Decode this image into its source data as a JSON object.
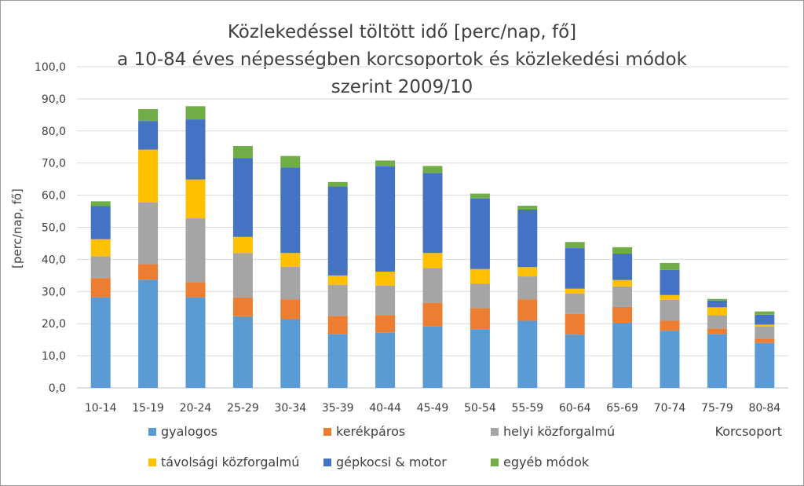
{
  "chart_data": {
    "type": "bar",
    "stacked": true,
    "title_lines": [
      "Közlekedéssel  töltött idő [perc/nap, fő]",
      "a 10-84 éves népességben  korcsoportok  és közlekedési  módok",
      "szerint  2009/10"
    ],
    "xlabel": "Korcsoport",
    "ylabel": "[perc/nap, fő]",
    "ylim": [
      0,
      100
    ],
    "ytick_step": 10,
    "ytick_labels": [
      "0,0",
      "10,0",
      "20,0",
      "30,0",
      "40,0",
      "50,0",
      "60,0",
      "70,0",
      "80,0",
      "90,0",
      "100,0"
    ],
    "grid": true,
    "legend_position": "bottom",
    "categories": [
      "10-14",
      "15-19",
      "20-24",
      "25-29",
      "30-34",
      "35-39",
      "40-44",
      "45-49",
      "50-54",
      "55-59",
      "60-64",
      "65-69",
      "70-74",
      "75-79",
      "80-84"
    ],
    "series": [
      {
        "name": "gyalogos",
        "color": "#5b9bd5",
        "values": [
          28.2,
          33.7,
          28.2,
          22.3,
          21.4,
          16.8,
          17.3,
          19.1,
          18.3,
          20.9,
          16.6,
          20.3,
          17.8,
          16.8,
          14.0
        ]
      },
      {
        "name": "kerékpáros",
        "color": "#ed7d31",
        "values": [
          6.0,
          4.8,
          4.7,
          5.8,
          6.2,
          5.6,
          5.4,
          7.4,
          6.5,
          6.7,
          6.4,
          4.9,
          3.1,
          1.7,
          1.3
        ]
      },
      {
        "name": "helyi közforgalmú",
        "color": "#a5a5a5",
        "values": [
          6.8,
          19.2,
          19.9,
          13.9,
          10.1,
          9.7,
          9.1,
          10.8,
          7.6,
          7.1,
          6.4,
          6.4,
          6.5,
          4.1,
          3.8
        ]
      },
      {
        "name": "távolsági közforgalmú",
        "color": "#ffc000",
        "values": [
          5.3,
          16.5,
          12.1,
          5.0,
          4.3,
          2.9,
          4.4,
          4.7,
          4.6,
          2.9,
          1.5,
          2.0,
          1.5,
          2.5,
          0.6
        ]
      },
      {
        "name": "gépkocsi & motor",
        "color": "#4472c4",
        "values": [
          10.3,
          8.9,
          18.7,
          24.6,
          26.6,
          27.7,
          32.8,
          24.9,
          22.0,
          17.9,
          12.6,
          8.2,
          7.8,
          2.1,
          3.1
        ]
      },
      {
        "name": "egyéb módok",
        "color": "#70ad47",
        "values": [
          1.5,
          3.7,
          4.1,
          3.7,
          3.6,
          1.4,
          1.8,
          2.2,
          1.5,
          1.2,
          1.9,
          2.0,
          2.2,
          0.5,
          1.0
        ]
      }
    ]
  }
}
